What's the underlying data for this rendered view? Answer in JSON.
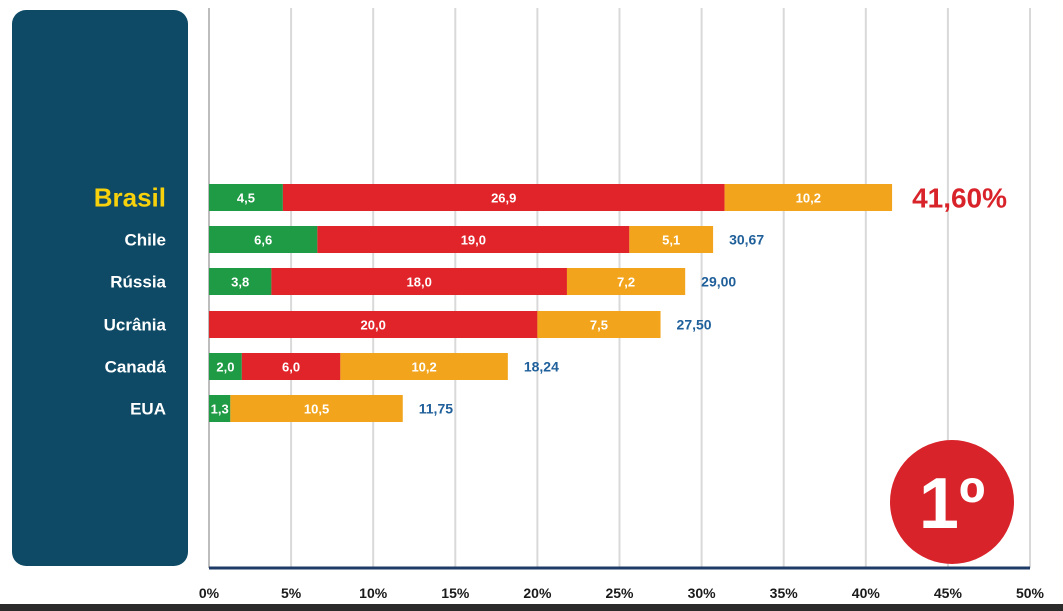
{
  "colors": {
    "panel": "#0e4a66",
    "green": "#1f9a45",
    "red": "#e0242a",
    "orange": "#f2a51c",
    "total_blue": "#1f5f9a",
    "highlight_yellow": "#f6d10c",
    "highlight_red": "#d9232a",
    "grid": "#d9d9d9",
    "axis": "#1d3b66"
  },
  "badge": {
    "text": "1º"
  },
  "chart_data": {
    "type": "bar",
    "orientation": "horizontal",
    "stacked": true,
    "xlim": [
      0,
      50
    ],
    "x_ticks": [
      "0%",
      "5%",
      "10%",
      "15%",
      "20%",
      "25%",
      "30%",
      "35%",
      "40%",
      "45%",
      "50%"
    ],
    "grid": true,
    "categories": [
      "Brasil",
      "Chile",
      "Rússia",
      "Ucrânia",
      "Canadá",
      "EUA"
    ],
    "series": [
      {
        "values": [
          4.5,
          6.6,
          3.8,
          0,
          2.0,
          1.3
        ],
        "labels": [
          "4,5",
          "6,6",
          "3,8",
          "",
          "2,0",
          "1,3"
        ],
        "color": "#1f9a45"
      },
      {
        "values": [
          26.9,
          19.0,
          18.0,
          20.0,
          6.0,
          0
        ],
        "labels": [
          "26,9",
          "19,0",
          "18,0",
          "20,0",
          "6,0",
          ""
        ],
        "color": "#e0242a"
      },
      {
        "values": [
          10.2,
          5.1,
          7.2,
          7.5,
          10.2,
          10.5
        ],
        "labels": [
          "10,2",
          "5,1",
          "7,2",
          "7,5",
          "10,2",
          "10,5"
        ],
        "color": "#f2a51c"
      }
    ],
    "totals": [
      41.6,
      30.67,
      29.0,
      27.5,
      18.24,
      11.75
    ],
    "total_labels": [
      "41,60%",
      "30,67",
      "29,00",
      "27,50",
      "18,24",
      "11,75"
    ],
    "highlight_category": "Brasil"
  }
}
